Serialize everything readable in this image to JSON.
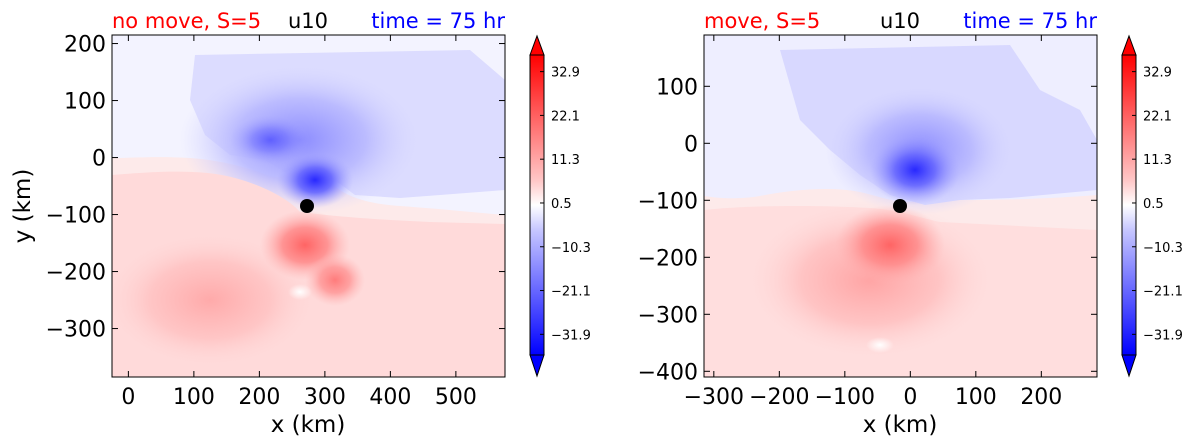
{
  "colors": {
    "title_left": "#ff0000",
    "title_center": "#000000",
    "title_right": "#0000ff",
    "positive": "#ff0000",
    "negative": "#0000ff",
    "center_marker": "#000000"
  },
  "chart_data": [
    {
      "type": "heatmap",
      "variable": "u10",
      "title_left": "no move, S=5",
      "title_center": "u10",
      "title_right": "time = 75 hr",
      "xlabel": "x (km)",
      "ylabel": "y (km)",
      "xlim": [
        -25,
        575
      ],
      "ylim": [
        -385,
        215
      ],
      "xticks": [
        0,
        100,
        200,
        300,
        400,
        500
      ],
      "xtick_labels": [
        "0",
        "100",
        "200",
        "300",
        "400",
        "500"
      ],
      "yticks": [
        200,
        100,
        0,
        -100,
        -200,
        -300
      ],
      "ytick_labels": [
        "200",
        "100",
        "0",
        "−100",
        "−200",
        "−300"
      ],
      "center": {
        "x": 275,
        "y": -83
      },
      "colorbar": {
        "min": -37,
        "max": 37,
        "ticks": [
          32.9,
          22.1,
          11.3,
          0.5,
          -10.3,
          -21.1,
          -31.9
        ],
        "tick_labels": [
          "32.9",
          "22.1",
          "11.3",
          "0.5",
          "−10.3",
          "−21.1",
          "−31.9"
        ],
        "extend": "both"
      }
    },
    {
      "type": "heatmap",
      "variable": "u10",
      "title_left": "move, S=5",
      "title_center": "u10",
      "title_right": "time = 75 hr",
      "xlabel": "x (km)",
      "ylabel": "",
      "xlim": [
        -315,
        285
      ],
      "ylim": [
        -410,
        190
      ],
      "xticks": [
        -300,
        -200,
        -100,
        0,
        100,
        200
      ],
      "xtick_labels": [
        "−300",
        "−200",
        "−100",
        "0",
        "100",
        "200"
      ],
      "yticks": [
        100,
        0,
        -100,
        -200,
        -300,
        -400
      ],
      "ytick_labels": [
        "100",
        "0",
        "−100",
        "−200",
        "−300",
        "−400"
      ],
      "center": {
        "x": -15,
        "y": -108
      },
      "colorbar": {
        "min": -37,
        "max": 37,
        "ticks": [
          32.9,
          22.1,
          11.3,
          0.5,
          -10.3,
          -21.1,
          -31.9
        ],
        "tick_labels": [
          "32.9",
          "22.1",
          "11.3",
          "0.5",
          "−10.3",
          "−21.1",
          "−31.9"
        ],
        "extend": "both"
      }
    }
  ]
}
